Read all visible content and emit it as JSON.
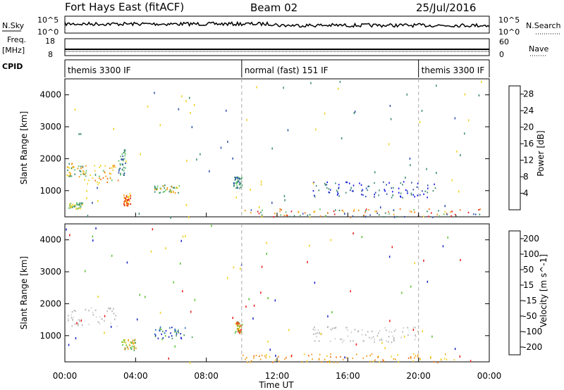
{
  "header": {
    "station": "Fort Hays East (fitACF)",
    "beam": "Beam 02",
    "date": "25/Jul/2016"
  },
  "strip_panels": {
    "nsky": {
      "label": "N.Sky",
      "ticks": [
        "10^5",
        "10^0"
      ]
    },
    "nsearch": {
      "label": "N.Search",
      "ticks": [
        "10^5",
        "10^0"
      ]
    },
    "freq": {
      "label": "Freq.",
      "unit": "[MHz]",
      "ticks": [
        "18",
        "8"
      ]
    },
    "nave": {
      "label": "Nave",
      "ticks": [
        "60",
        "0"
      ]
    },
    "cpid": {
      "label": "CPID"
    }
  },
  "cpid_segments": [
    {
      "label": "themis 3300 IF",
      "start_hour": 0,
      "end_hour": 10
    },
    {
      "label": "normal (fast) 151 IF",
      "start_hour": 10,
      "end_hour": 20
    },
    {
      "label": "themis 3300 IF",
      "start_hour": 20,
      "end_hour": 24
    }
  ],
  "chart_data": [
    {
      "type": "heatmap",
      "panel": "power",
      "ylabel": "Slant Range [km]",
      "xlabel": "",
      "ylim": [
        180,
        4500
      ],
      "yticks": [
        "1000",
        "2000",
        "3000",
        "4000"
      ],
      "xlim_hours": [
        0,
        24
      ],
      "colorbar_label": "Power [dB]",
      "colorbar_ticks": [
        "4",
        "8",
        "12",
        "16",
        "20",
        "24",
        "28"
      ],
      "colorbar_range": [
        0,
        30
      ],
      "scatter_regions": [
        {
          "hours": [
            0.1,
            1.2
          ],
          "km": [
            1450,
            1900
          ],
          "value": "12-24 dB"
        },
        {
          "hours": [
            1.0,
            3.0
          ],
          "km": [
            1200,
            1900
          ],
          "value": "16-24 dB"
        },
        {
          "hours": [
            3.0,
            3.4
          ],
          "km": [
            1500,
            2300
          ],
          "value": "4-16 dB"
        },
        {
          "hours": [
            0.2,
            1.0
          ],
          "km": [
            450,
            650
          ],
          "value": "12-24 dB"
        },
        {
          "hours": [
            3.3,
            3.7
          ],
          "km": [
            550,
            900
          ],
          "value": "20-28 dB"
        },
        {
          "hours": [
            5.0,
            6.5
          ],
          "km": [
            950,
            1200
          ],
          "value": "12-24 dB"
        },
        {
          "hours": [
            9.5,
            10.0
          ],
          "km": [
            1100,
            1450
          ],
          "value": "4-16 dB"
        },
        {
          "hours": [
            14.0,
            21.0
          ],
          "km": [
            800,
            1300
          ],
          "value": "4-12 dB"
        },
        {
          "hours": [
            10.0,
            24.0
          ],
          "km": [
            180,
            450
          ],
          "value": "4-28 dB"
        }
      ]
    },
    {
      "type": "heatmap",
      "panel": "velocity",
      "ylabel": "Slant Range [km]",
      "xlabel": "Time UT",
      "ylim": [
        180,
        4500
      ],
      "yticks": [
        "1000",
        "2000",
        "3000",
        "4000"
      ],
      "xlim_hours": [
        0,
        24
      ],
      "xticks": [
        "00:00",
        "04:00",
        "08:00",
        "12:00",
        "16:00",
        "20:00",
        "00:00"
      ],
      "colorbar_label": "Velocity [m s^-1]",
      "colorbar_ticks": [
        "200",
        "100",
        "50",
        "15",
        "-15",
        "-50",
        "-100",
        "-200"
      ],
      "colorbar_range": [
        -250,
        250
      ],
      "scatter_regions": [
        {
          "hours": [
            0.1,
            3.0
          ],
          "km": [
            1300,
            1900
          ],
          "value": "-15 to 15 m/s"
        },
        {
          "hours": [
            5.0,
            7.2
          ],
          "km": [
            900,
            1300
          ],
          "value": "50 to 200 m/s"
        },
        {
          "hours": [
            3.2,
            4.0
          ],
          "km": [
            550,
            900
          ],
          "value": "-50 to 50 m/s"
        },
        {
          "hours": [
            9.6,
            10.0
          ],
          "km": [
            1100,
            1450
          ],
          "value": "-200 to 50 m/s"
        },
        {
          "hours": [
            10.0,
            22.0
          ],
          "km": [
            180,
            450
          ],
          "value": "-100 to -15 m/s"
        },
        {
          "hours": [
            14.0,
            20.0
          ],
          "km": [
            800,
            1300
          ],
          "value": "-15 to 15 m/s"
        }
      ]
    }
  ],
  "colors": {
    "power_scale": [
      "#1010e8",
      "#2a4ea8",
      "#3b8b6c",
      "#62c06c",
      "#f0d020",
      "#f59a10",
      "#f07010",
      "#e81818"
    ],
    "velocity_scale": [
      "#1a22c8",
      "#2a6ec4",
      "#4aa05a",
      "#58c030",
      "#c8c8c8",
      "#f0d020",
      "#f0a020",
      "#f07010",
      "#e81818"
    ],
    "ground_scatter": "#b4b4b4"
  }
}
